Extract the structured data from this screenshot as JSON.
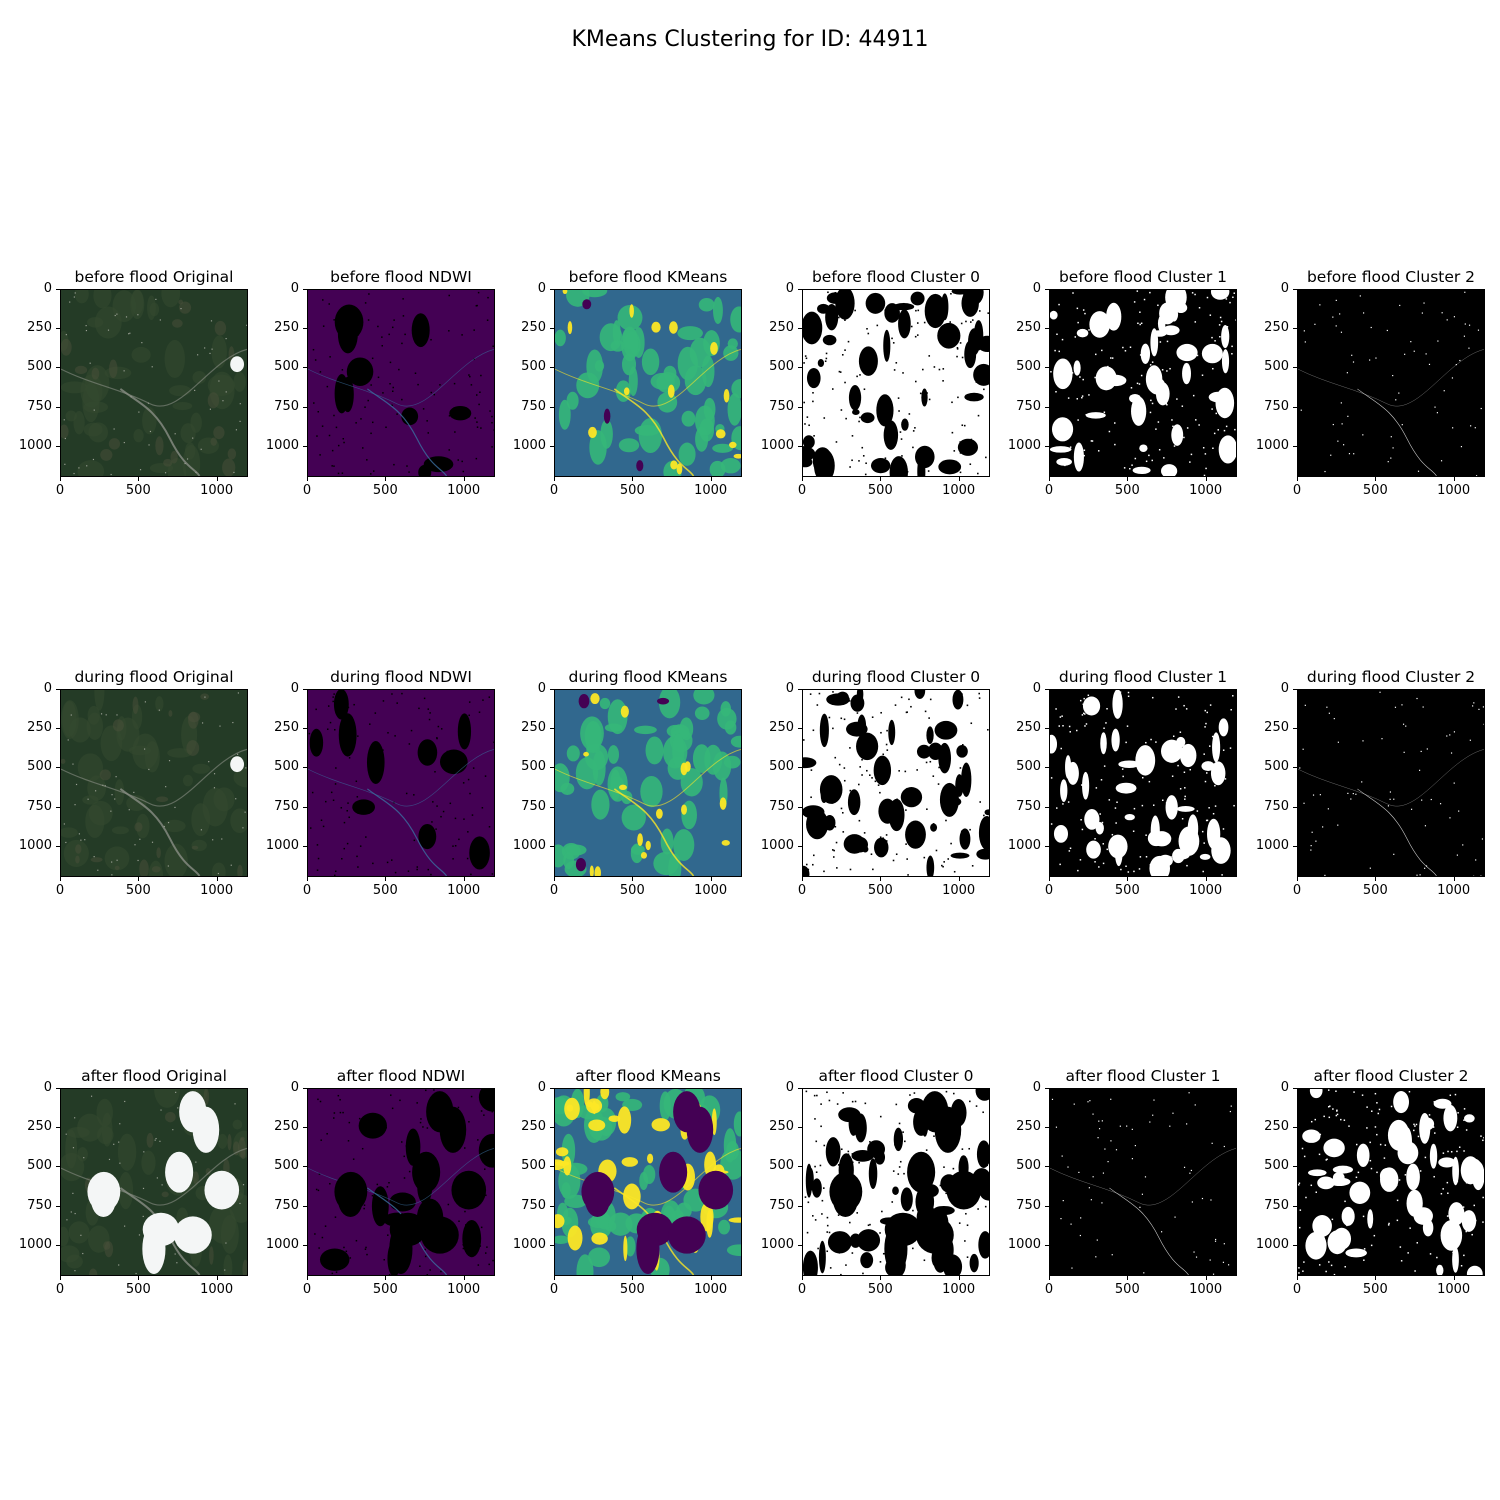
{
  "figure": {
    "title": "KMeans Clustering for ID: 44911"
  },
  "axes": {
    "y_ticks": [
      "0",
      "250",
      "500",
      "750",
      "1000"
    ],
    "x_ticks": [
      "0",
      "500",
      "1000"
    ],
    "y_tick_values": [
      0,
      250,
      500,
      750,
      1000
    ],
    "x_tick_values": [
      0,
      500,
      1000
    ],
    "extent": 1200
  },
  "rows": [
    {
      "phase": "before flood",
      "panels": [
        {
          "title": "before flood Original",
          "kind": "rgb-original"
        },
        {
          "title": "before flood NDWI",
          "kind": "ndwi"
        },
        {
          "title": "before flood KMeans",
          "kind": "kmeans"
        },
        {
          "title": "before flood Cluster 0",
          "kind": "mask-white"
        },
        {
          "title": "before flood Cluster 1",
          "kind": "mask-black"
        },
        {
          "title": "before flood Cluster 2",
          "kind": "mask-sparse"
        }
      ]
    },
    {
      "phase": "during flood",
      "panels": [
        {
          "title": "during flood Original",
          "kind": "rgb-original"
        },
        {
          "title": "during flood NDWI",
          "kind": "ndwi"
        },
        {
          "title": "during flood KMeans",
          "kind": "kmeans"
        },
        {
          "title": "during flood Cluster 0",
          "kind": "mask-white"
        },
        {
          "title": "during flood Cluster 1",
          "kind": "mask-black"
        },
        {
          "title": "during flood Cluster 2",
          "kind": "mask-sparse"
        }
      ]
    },
    {
      "phase": "after flood",
      "panels": [
        {
          "title": "after flood Original",
          "kind": "rgb-cloudy"
        },
        {
          "title": "after flood NDWI",
          "kind": "ndwi-cloudy"
        },
        {
          "title": "after flood KMeans",
          "kind": "kmeans-cloudy"
        },
        {
          "title": "after flood Cluster 0",
          "kind": "mask-white-cloudy"
        },
        {
          "title": "after flood Cluster 1",
          "kind": "mask-sparse"
        },
        {
          "title": "after flood Cluster 2",
          "kind": "mask-black-dense"
        }
      ]
    }
  ],
  "colors": {
    "viridis_dark": "#440154",
    "viridis_mid": "#31688e",
    "viridis_teal": "#35b779",
    "viridis_yellow": "#fde725",
    "veg_green": "#243b26",
    "cloud_white": "#f4f6f6"
  }
}
